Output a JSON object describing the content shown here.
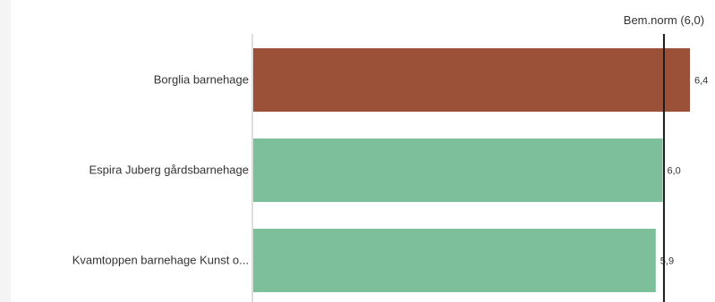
{
  "chart_data": {
    "type": "bar",
    "orientation": "horizontal",
    "categories": [
      "Borglia barnehage",
      "Espira Juberg gårdsbarnehage",
      "Kvamtoppen barnehage Kunst o..."
    ],
    "values": [
      6.4,
      6.0,
      5.9
    ],
    "value_labels": [
      "6,4",
      "6,0",
      "5,9"
    ],
    "bar_colors": [
      "#9b5138",
      "#7ebf9b",
      "#7ebf9b"
    ],
    "reference_line": {
      "label": "Bem.norm (6,0)",
      "value": 6.0,
      "color": "#1a1a1a"
    },
    "xlim": [
      0,
      6.4
    ],
    "grid": false,
    "legend": "none"
  },
  "colors": {
    "above_norm": "#9b5138",
    "at_or_below_norm": "#7ebf9b",
    "axis": "#bdbdbd",
    "side_strip": "#f4f4f4"
  }
}
